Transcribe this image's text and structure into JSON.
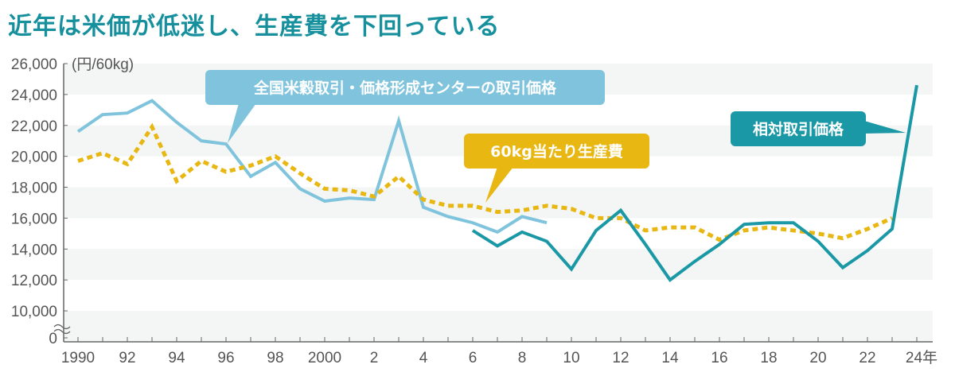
{
  "title": "近年は米価が低迷し、生産費を下回っている",
  "chart_data": {
    "type": "line",
    "title": "近年は米価が低迷し、生産費を下回っている",
    "ylabel": "(円/60kg)",
    "xlabel": "",
    "ylim": [
      0,
      26000
    ],
    "y_break": "between 0 and 10,000",
    "yticks": [
      "26,000",
      "24,000",
      "22,000",
      "20,000",
      "18,000",
      "16,000",
      "14,000",
      "12,000",
      "10,000",
      "0"
    ],
    "ytick_values": [
      26000,
      24000,
      22000,
      20000,
      18000,
      16000,
      14000,
      12000,
      10000,
      0
    ],
    "xticks": [
      "1990",
      "92",
      "94",
      "96",
      "98",
      "2000",
      "2",
      "4",
      "6",
      "8",
      "10",
      "12",
      "14",
      "16",
      "18",
      "20",
      "22",
      "24年"
    ],
    "xtick_years": [
      1990,
      1992,
      1994,
      1996,
      1998,
      2000,
      2002,
      2004,
      2006,
      2008,
      2010,
      2012,
      2014,
      2016,
      2018,
      2020,
      2022,
      2024
    ],
    "xlim": [
      1990,
      2024
    ],
    "grid": "horizontal bands",
    "series": [
      {
        "name": "全国米穀取引・価格形成センターの取引価格",
        "color": "#7fc4dc",
        "style": "solid",
        "x": [
          1990,
          1991,
          1992,
          1993,
          1994,
          1995,
          1996,
          1997,
          1998,
          1999,
          2000,
          2001,
          2002,
          2003,
          2004,
          2005,
          2006,
          2007,
          2008,
          2009
        ],
        "values": [
          21600,
          22700,
          22800,
          23600,
          22200,
          21000,
          20800,
          18700,
          19600,
          17900,
          17100,
          17300,
          17200,
          22300,
          16700,
          16100,
          15700,
          15100,
          16100,
          15700
        ]
      },
      {
        "name": "60kg当たり生産費",
        "color": "#e8b712",
        "style": "dashed",
        "x": [
          1990,
          1991,
          1992,
          1993,
          1994,
          1995,
          1996,
          1997,
          1998,
          1999,
          2000,
          2001,
          2002,
          2003,
          2004,
          2005,
          2006,
          2007,
          2008,
          2009,
          2010,
          2011,
          2012,
          2013,
          2014,
          2015,
          2016,
          2017,
          2018,
          2019,
          2020,
          2021,
          2022,
          2023
        ],
        "values": [
          19700,
          20200,
          19500,
          21900,
          18400,
          19700,
          19000,
          19400,
          20000,
          18900,
          17900,
          17800,
          17400,
          18700,
          17200,
          16800,
          16800,
          16400,
          16500,
          16800,
          16600,
          16000,
          16000,
          15200,
          15400,
          15400,
          14600,
          15200,
          15400,
          15200,
          15000,
          14700,
          15300,
          16000
        ]
      },
      {
        "name": "相対取引価格",
        "color": "#1a98a6",
        "style": "solid",
        "x": [
          2006,
          2007,
          2008,
          2009,
          2010,
          2011,
          2012,
          2013,
          2014,
          2015,
          2016,
          2017,
          2018,
          2019,
          2020,
          2021,
          2022,
          2023,
          2024
        ],
        "values": [
          15200,
          14200,
          15100,
          14500,
          12700,
          15200,
          16500,
          14300,
          12000,
          13200,
          14300,
          15600,
          15700,
          15700,
          14500,
          12800,
          13900,
          15300,
          24600
        ]
      }
    ]
  }
}
